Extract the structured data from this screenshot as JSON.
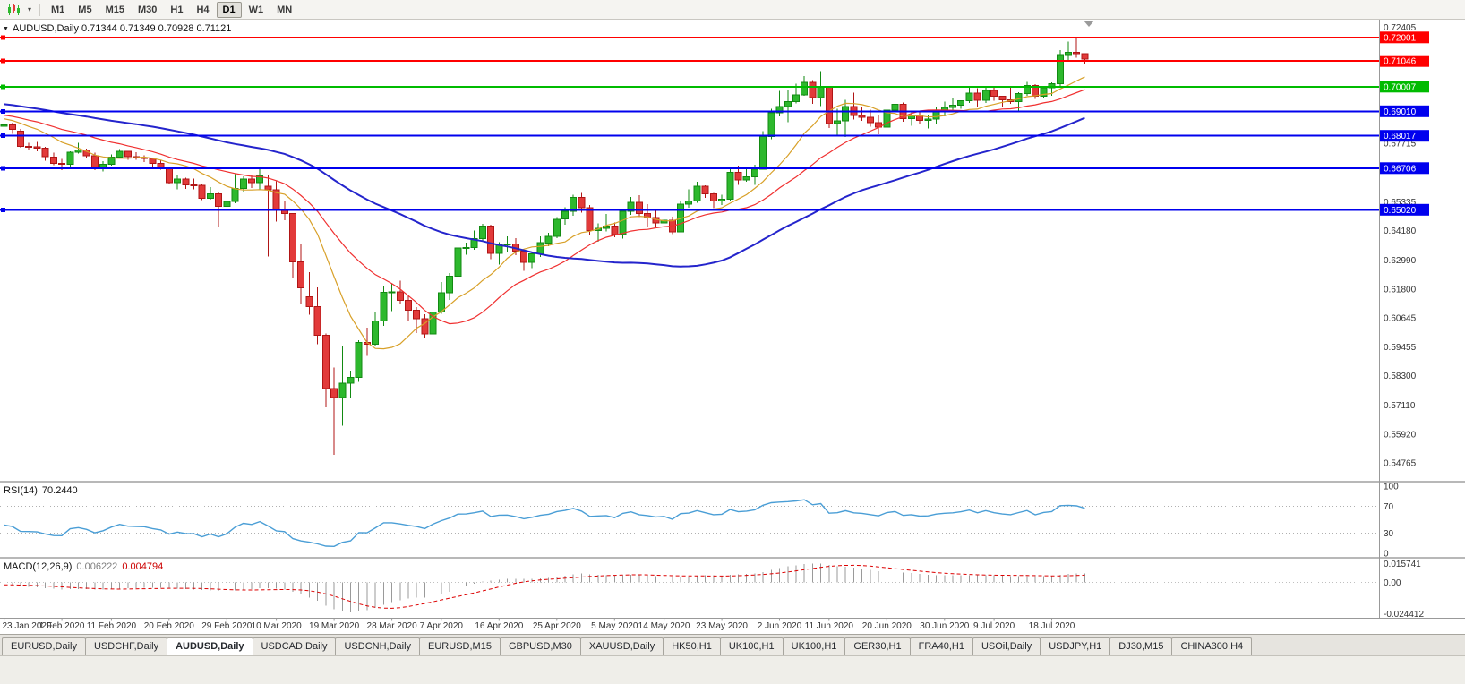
{
  "icons": {
    "toolbar_caret": "▾",
    "title_caret": "▼"
  },
  "toolbar": {
    "timeframes": [
      {
        "label": "M1",
        "active": false
      },
      {
        "label": "M5",
        "active": false
      },
      {
        "label": "M15",
        "active": false
      },
      {
        "label": "M30",
        "active": false
      },
      {
        "label": "H1",
        "active": false
      },
      {
        "label": "H4",
        "active": false
      },
      {
        "label": "D1",
        "active": true
      },
      {
        "label": "W1",
        "active": false
      },
      {
        "label": "MN",
        "active": false
      }
    ]
  },
  "chart_data": {
    "type": "candlestick",
    "symbol": "AUDUSD",
    "period": "Daily",
    "title_text": "AUDUSD,Daily 0.71344 0.71349 0.70928 0.71121",
    "current_bar": {
      "open": "0.71344",
      "high": "0.71349",
      "low": "0.70928",
      "close": "0.71121"
    },
    "colors": {
      "up_fill": "#2db82d",
      "up_stroke": "#128a12",
      "down_fill": "#e23a3a",
      "down_stroke": "#b01515",
      "ma_fast": "#d8a028",
      "ma_mid": "#f03030",
      "ma_slow": "#2424cc",
      "rsi_line": "#4a9ed6",
      "macd_hist": "#9a9a9a",
      "macd_signal": "#dd0000",
      "line_red": "#ff0000",
      "line_green": "#00bb00",
      "line_blue": "#0000ee"
    },
    "price_panel": {
      "ylim": [
        0.5404,
        0.7272
      ],
      "axis_labels": [
        "0.72405",
        "0.67715",
        "0.65335",
        "0.64180",
        "0.62990",
        "0.61800",
        "0.60645",
        "0.59455",
        "0.58300",
        "0.57110",
        "0.55920",
        "0.54765"
      ],
      "hlines": [
        {
          "value": 0.72001,
          "label": "0.72001",
          "color_key": "line_red"
        },
        {
          "value": 0.71046,
          "label": "0.71046",
          "color_key": "line_red"
        },
        {
          "value": 0.70007,
          "label": "0.70007",
          "color_key": "line_green"
        },
        {
          "value": 0.6901,
          "label": "0.69010",
          "color_key": "line_blue"
        },
        {
          "value": 0.68017,
          "label": "0.68017",
          "color_key": "line_blue"
        },
        {
          "value": 0.66706,
          "label": "0.66706",
          "color_key": "line_blue"
        },
        {
          "value": 0.6502,
          "label": "0.65020",
          "color_key": "line_blue"
        }
      ],
      "moving_averages": [
        {
          "period": 10,
          "color_key": "ma_fast",
          "width": 1.2
        },
        {
          "period": 20,
          "color_key": "ma_mid",
          "width": 1.2
        },
        {
          "period": 50,
          "color_key": "ma_slow",
          "width": 2
        }
      ],
      "warmup": {
        "count": 50,
        "from": 0.7005,
        "to": 0.686,
        "wiggle": 0.0012
      },
      "candles": [
        [
          0.684,
          0.6878,
          0.6827,
          0.6845
        ],
        [
          0.6845,
          0.6855,
          0.681,
          0.6827
        ],
        [
          0.682,
          0.6829,
          0.6754,
          0.6758
        ],
        [
          0.6758,
          0.6774,
          0.6744,
          0.6757
        ],
        [
          0.6757,
          0.6776,
          0.6738,
          0.6751
        ],
        [
          0.6751,
          0.6757,
          0.67,
          0.6716
        ],
        [
          0.6716,
          0.6733,
          0.6682,
          0.669
        ],
        [
          0.669,
          0.6708,
          0.6662,
          0.6687
        ],
        [
          0.6687,
          0.6738,
          0.6678,
          0.6736
        ],
        [
          0.6736,
          0.6774,
          0.6729,
          0.6745
        ],
        [
          0.6745,
          0.675,
          0.6714,
          0.6721
        ],
        [
          0.6721,
          0.6733,
          0.6662,
          0.6671
        ],
        [
          0.6671,
          0.6698,
          0.6657,
          0.6686
        ],
        [
          0.6686,
          0.6726,
          0.668,
          0.6715
        ],
        [
          0.6715,
          0.6748,
          0.671,
          0.6738
        ],
        [
          0.6738,
          0.674,
          0.6704,
          0.6717
        ],
        [
          0.6717,
          0.6735,
          0.6705,
          0.6713
        ],
        [
          0.6713,
          0.6723,
          0.6696,
          0.671
        ],
        [
          0.671,
          0.6714,
          0.6666,
          0.6689
        ],
        [
          0.6689,
          0.6704,
          0.6665,
          0.6673
        ],
        [
          0.6673,
          0.6677,
          0.6606,
          0.6612
        ],
        [
          0.6612,
          0.664,
          0.6585,
          0.6626
        ],
        [
          0.6626,
          0.6632,
          0.6586,
          0.6603
        ],
        [
          0.6603,
          0.6628,
          0.6585,
          0.6601
        ],
        [
          0.6601,
          0.6607,
          0.6542,
          0.6548
        ],
        [
          0.6548,
          0.6594,
          0.6543,
          0.6566
        ],
        [
          0.6566,
          0.6576,
          0.6434,
          0.6515
        ],
        [
          0.6515,
          0.6562,
          0.6464,
          0.6536
        ],
        [
          0.6536,
          0.6646,
          0.6528,
          0.6589
        ],
        [
          0.6589,
          0.6637,
          0.6576,
          0.6626
        ],
        [
          0.6626,
          0.664,
          0.659,
          0.6611
        ],
        [
          0.6611,
          0.6668,
          0.6585,
          0.6639
        ],
        [
          0.6598,
          0.6641,
          0.6313,
          0.6583
        ],
        [
          0.6583,
          0.6617,
          0.6454,
          0.65
        ],
        [
          0.65,
          0.6538,
          0.6459,
          0.6486
        ],
        [
          0.6486,
          0.6487,
          0.6228,
          0.629
        ],
        [
          0.629,
          0.6365,
          0.6123,
          0.6185
        ],
        [
          0.615,
          0.625,
          0.6076,
          0.611
        ],
        [
          0.611,
          0.6188,
          0.5958,
          0.5994
        ],
        [
          0.5994,
          0.6001,
          0.5702,
          0.5777
        ],
        [
          0.5777,
          0.5862,
          0.551,
          0.5741
        ],
        [
          0.5741,
          0.5948,
          0.5627,
          0.58
        ],
        [
          0.58,
          0.5851,
          0.5742,
          0.5823
        ],
        [
          0.5823,
          0.5974,
          0.5805,
          0.5964
        ],
        [
          0.5964,
          0.6025,
          0.591,
          0.5957
        ],
        [
          0.5957,
          0.6088,
          0.595,
          0.6051
        ],
        [
          0.6051,
          0.6194,
          0.6032,
          0.6168
        ],
        [
          0.6168,
          0.6202,
          0.6092,
          0.6169
        ],
        [
          0.6169,
          0.6214,
          0.612,
          0.6135
        ],
        [
          0.6135,
          0.6152,
          0.605,
          0.6095
        ],
        [
          0.6095,
          0.6108,
          0.6003,
          0.606
        ],
        [
          0.606,
          0.6078,
          0.5982,
          0.5999
        ],
        [
          0.5999,
          0.6096,
          0.599,
          0.6087
        ],
        [
          0.6087,
          0.621,
          0.608,
          0.6166
        ],
        [
          0.6166,
          0.6245,
          0.6136,
          0.6233
        ],
        [
          0.6233,
          0.6364,
          0.6218,
          0.6347
        ],
        [
          0.6347,
          0.6368,
          0.632,
          0.6349
        ],
        [
          0.6349,
          0.6417,
          0.634,
          0.6386
        ],
        [
          0.6386,
          0.6445,
          0.6375,
          0.6436
        ],
        [
          0.6436,
          0.6441,
          0.6302,
          0.6325
        ],
        [
          0.6325,
          0.637,
          0.628,
          0.6362
        ],
        [
          0.6362,
          0.6395,
          0.633,
          0.6364
        ],
        [
          0.6364,
          0.6387,
          0.6318,
          0.6334
        ],
        [
          0.6334,
          0.634,
          0.6254,
          0.6289
        ],
        [
          0.6289,
          0.6331,
          0.6266,
          0.6323
        ],
        [
          0.6323,
          0.6395,
          0.631,
          0.6368
        ],
        [
          0.6368,
          0.6408,
          0.6355,
          0.6394
        ],
        [
          0.6394,
          0.6472,
          0.6387,
          0.6464
        ],
        [
          0.6464,
          0.6513,
          0.6441,
          0.6496
        ],
        [
          0.6496,
          0.6562,
          0.6478,
          0.6552
        ],
        [
          0.6552,
          0.657,
          0.649,
          0.6511
        ],
        [
          0.6511,
          0.6522,
          0.6402,
          0.6418
        ],
        [
          0.6418,
          0.6447,
          0.6372,
          0.6427
        ],
        [
          0.6427,
          0.6484,
          0.6415,
          0.6436
        ],
        [
          0.6436,
          0.645,
          0.6391,
          0.6401
        ],
        [
          0.6401,
          0.6506,
          0.6385,
          0.6495
        ],
        [
          0.6495,
          0.6553,
          0.6482,
          0.6532
        ],
        [
          0.6532,
          0.6561,
          0.6472,
          0.6486
        ],
        [
          0.6486,
          0.6524,
          0.6435,
          0.6471
        ],
        [
          0.6471,
          0.6505,
          0.6426,
          0.6449
        ],
        [
          0.6449,
          0.6471,
          0.6403,
          0.6459
        ],
        [
          0.6459,
          0.6474,
          0.6404,
          0.6413
        ],
        [
          0.6413,
          0.6535,
          0.641,
          0.6525
        ],
        [
          0.6525,
          0.6585,
          0.6511,
          0.6537
        ],
        [
          0.6537,
          0.6616,
          0.6531,
          0.6598
        ],
        [
          0.6598,
          0.6601,
          0.6551,
          0.6566
        ],
        [
          0.6566,
          0.6571,
          0.6509,
          0.6537
        ],
        [
          0.6537,
          0.6562,
          0.6522,
          0.6545
        ],
        [
          0.6545,
          0.6675,
          0.654,
          0.6654
        ],
        [
          0.6654,
          0.6681,
          0.6603,
          0.6622
        ],
        [
          0.6622,
          0.6666,
          0.6616,
          0.6636
        ],
        [
          0.6636,
          0.6684,
          0.6602,
          0.6667
        ],
        [
          0.6667,
          0.682,
          0.6664,
          0.6799
        ],
        [
          0.6799,
          0.6911,
          0.6787,
          0.6895
        ],
        [
          0.6895,
          0.6983,
          0.688,
          0.692
        ],
        [
          0.692,
          0.6988,
          0.6857,
          0.694
        ],
        [
          0.694,
          0.7013,
          0.6932,
          0.6968
        ],
        [
          0.6968,
          0.7043,
          0.6963,
          0.7019
        ],
        [
          0.7019,
          0.7027,
          0.6931,
          0.6957
        ],
        [
          0.6957,
          0.7063,
          0.6922,
          0.6999
        ],
        [
          0.6999,
          0.7004,
          0.6833,
          0.6851
        ],
        [
          0.6851,
          0.6911,
          0.6799,
          0.6863
        ],
        [
          0.6863,
          0.6948,
          0.6797,
          0.6921
        ],
        [
          0.6921,
          0.6977,
          0.6867,
          0.6884
        ],
        [
          0.6884,
          0.6921,
          0.6862,
          0.6876
        ],
        [
          0.6876,
          0.6908,
          0.6838,
          0.6855
        ],
        [
          0.6855,
          0.6887,
          0.6808,
          0.6836
        ],
        [
          0.6836,
          0.692,
          0.683,
          0.6906
        ],
        [
          0.6906,
          0.6976,
          0.6894,
          0.693
        ],
        [
          0.693,
          0.6936,
          0.6858,
          0.6872
        ],
        [
          0.6872,
          0.6901,
          0.6842,
          0.6886
        ],
        [
          0.6886,
          0.6899,
          0.6851,
          0.6864
        ],
        [
          0.6864,
          0.6886,
          0.6832,
          0.6869
        ],
        [
          0.6869,
          0.692,
          0.685,
          0.6902
        ],
        [
          0.6902,
          0.6941,
          0.688,
          0.6916
        ],
        [
          0.6916,
          0.6952,
          0.6901,
          0.6925
        ],
        [
          0.6925,
          0.6946,
          0.6911,
          0.6944
        ],
        [
          0.6944,
          0.6998,
          0.6935,
          0.6975
        ],
        [
          0.6975,
          0.6995,
          0.6921,
          0.6945
        ],
        [
          0.6945,
          0.6999,
          0.6935,
          0.6985
        ],
        [
          0.6985,
          0.6996,
          0.6943,
          0.6962
        ],
        [
          0.6962,
          0.6963,
          0.692,
          0.6948
        ],
        [
          0.6948,
          0.7,
          0.6931,
          0.694
        ],
        [
          0.694,
          0.6978,
          0.6901,
          0.6972
        ],
        [
          0.6972,
          0.702,
          0.6963,
          0.7005
        ],
        [
          0.7005,
          0.7011,
          0.6951,
          0.6961
        ],
        [
          0.6961,
          0.7004,
          0.6955,
          0.6997
        ],
        [
          0.6997,
          0.7019,
          0.6963,
          0.7012
        ],
        [
          0.7012,
          0.7148,
          0.7001,
          0.713
        ],
        [
          0.713,
          0.7183,
          0.7108,
          0.714
        ],
        [
          0.714,
          0.72,
          0.7117,
          0.7135
        ],
        [
          0.7134,
          0.7135,
          0.7093,
          0.7112
        ]
      ]
    },
    "rsi_panel": {
      "name": "RSI(14)",
      "value": "70.2440",
      "period": 14,
      "scale_labels": [
        "100",
        "70",
        "30",
        "0"
      ],
      "level_lines": [
        70,
        30
      ]
    },
    "macd_panel": {
      "name": "MACD(12,26,9)",
      "value_main": "0.006222",
      "value_signal": "0.004794",
      "fast": 12,
      "slow": 26,
      "signal": 9,
      "ylim": [
        -0.0252,
        0.0162
      ],
      "scale_top": "0.015741",
      "scale_zero": "0.00",
      "scale_bottom": "-0.024412"
    },
    "time_axis": {
      "labels": [
        "23 Jan 2020",
        "1 Feb 2020",
        "11 Feb 2020",
        "20 Feb 2020",
        "29 Feb 2020",
        "10 Mar 2020",
        "19 Mar 2020",
        "28 Mar 2020",
        "7 Apr 2020",
        "16 Apr 2020",
        "25 Apr 2020",
        "5 May 2020",
        "14 May 2020",
        "23 May 2020",
        "2 Jun 2020",
        "11 Jun 2020",
        "20 Jun 2020",
        "30 Jun 2020",
        "9 Jul 2020",
        "18 Jul 2020"
      ]
    }
  },
  "tabs": {
    "items": [
      {
        "label": "EURUSD,Daily",
        "active": false
      },
      {
        "label": "USDCHF,Daily",
        "active": false
      },
      {
        "label": "AUDUSD,Daily",
        "active": true
      },
      {
        "label": "USDCAD,Daily",
        "active": false
      },
      {
        "label": "USDCNH,Daily",
        "active": false
      },
      {
        "label": "EURUSD,M15",
        "active": false
      },
      {
        "label": "GBPUSD,M30",
        "active": false
      },
      {
        "label": "XAUUSD,Daily",
        "active": false
      },
      {
        "label": "HK50,H1",
        "active": false
      },
      {
        "label": "UK100,H1",
        "active": false
      },
      {
        "label": "UK100,H1",
        "active": false
      },
      {
        "label": "GER30,H1",
        "active": false
      },
      {
        "label": "FRA40,H1",
        "active": false
      },
      {
        "label": "USOil,Daily",
        "active": false
      },
      {
        "label": "USDJPY,H1",
        "active": false
      },
      {
        "label": "DJ30,M15",
        "active": false
      },
      {
        "label": "CHINA300,H4",
        "active": false
      }
    ]
  }
}
